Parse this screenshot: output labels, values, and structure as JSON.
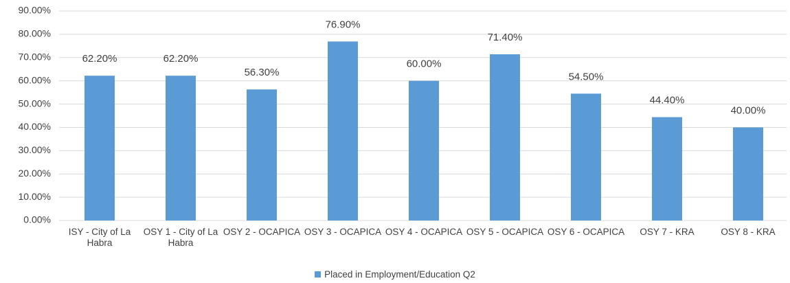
{
  "chart_data": {
    "type": "bar",
    "categories": [
      "ISY - City of La Habra",
      "OSY 1 - City of La Habra",
      "OSY 2 - OCAPICA",
      "OSY 3 - OCAPICA",
      "OSY 4 - OCAPICA",
      "OSY 5 - OCAPICA",
      "OSY 6 - OCAPICA",
      "OSY 7 - KRA",
      "OSY 8 - KRA"
    ],
    "series": [
      {
        "name": "Placed in Employment/Education Q2",
        "color": "#5b9bd5",
        "values": [
          62.2,
          62.2,
          56.3,
          76.9,
          60.0,
          71.4,
          54.5,
          44.4,
          40.0
        ],
        "value_labels": [
          "62.20%",
          "62.20%",
          "56.30%",
          "76.90%",
          "60.00%",
          "71.40%",
          "54.50%",
          "44.40%",
          "40.00%"
        ]
      }
    ],
    "ylim": [
      0,
      90
    ],
    "yticks": [
      {
        "value": 0,
        "label": "0.00%"
      },
      {
        "value": 10,
        "label": "10.00%"
      },
      {
        "value": 20,
        "label": "20.00%"
      },
      {
        "value": 30,
        "label": "30.00%"
      },
      {
        "value": 40,
        "label": "40.00%"
      },
      {
        "value": 50,
        "label": "50.00%"
      },
      {
        "value": 60,
        "label": "60.00%"
      },
      {
        "value": 70,
        "label": "70.00%"
      },
      {
        "value": 80,
        "label": "80.00%"
      },
      {
        "value": 90,
        "label": "90.00%"
      }
    ],
    "grid": true,
    "legend": "bottom"
  }
}
